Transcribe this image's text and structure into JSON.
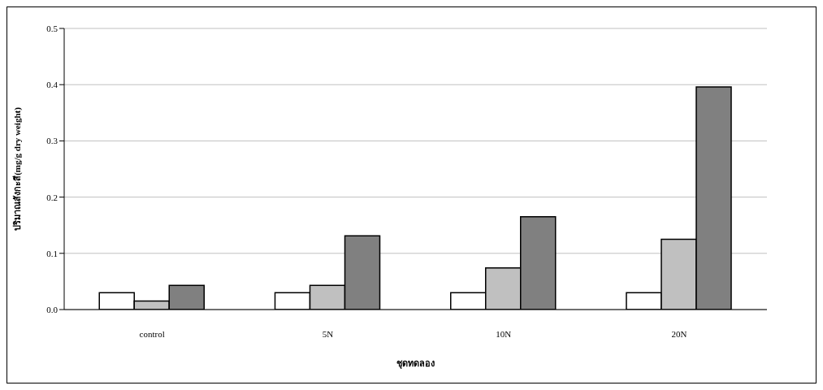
{
  "chart_data": {
    "type": "bar",
    "xlabel": "ชุดทดลอง",
    "ylabel": "ปริมาณสังกะสี(mg/g dry weight)",
    "categories": [
      "control",
      "5N",
      "10N",
      "20N"
    ],
    "series": [
      {
        "color": "#ffffff",
        "values": [
          0.03,
          0.03,
          0.03,
          0.03
        ]
      },
      {
        "color": "#c0c0c0",
        "values": [
          0.015,
          0.043,
          0.074,
          0.125
        ]
      },
      {
        "color": "#808080",
        "values": [
          0.043,
          0.131,
          0.165,
          0.396
        ]
      }
    ],
    "ylim": [
      0,
      0.5
    ],
    "yticks": [
      {
        "value": 0,
        "label": "0.0"
      },
      {
        "value": 0.1,
        "label": "0.1"
      },
      {
        "value": 0.2,
        "label": "0.2"
      },
      {
        "value": 0.3,
        "label": "0.3"
      },
      {
        "value": 0.4,
        "label": "0.4"
      },
      {
        "value": 0.5,
        "label": "0.5"
      }
    ],
    "grid": "y",
    "legend": false
  }
}
